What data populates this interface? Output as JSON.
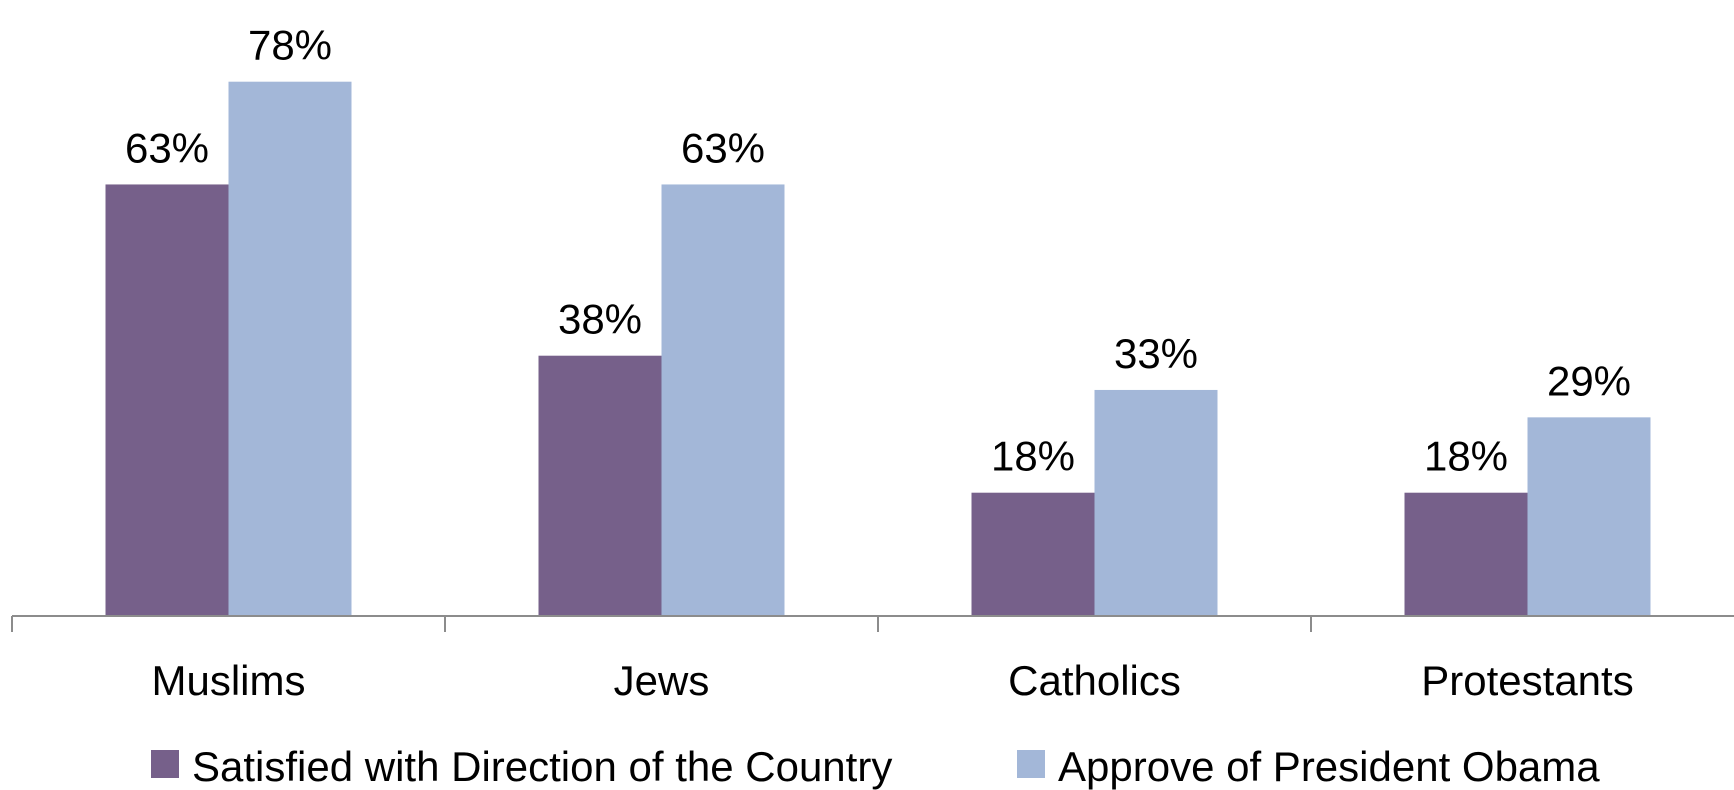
{
  "chart_data": {
    "type": "bar",
    "categories": [
      "Muslims",
      "Jews",
      "Catholics",
      "Protestants"
    ],
    "series": [
      {
        "name": "Satisfied with Direction of the Country",
        "values": [
          63,
          38,
          18,
          18
        ],
        "labels": [
          "63%",
          "38%",
          "18%",
          "18%"
        ],
        "color": "#76608A"
      },
      {
        "name": "Approve of President Obama",
        "values": [
          78,
          63,
          33,
          29
        ],
        "labels": [
          "78%",
          "63%",
          "33%",
          "29%"
        ],
        "color": "#A3B7D8"
      }
    ],
    "title": "",
    "xlabel": "",
    "ylabel": "",
    "ylim": [
      0,
      80
    ],
    "grid": false,
    "legend": "bottom",
    "y_axis_visible": false
  }
}
